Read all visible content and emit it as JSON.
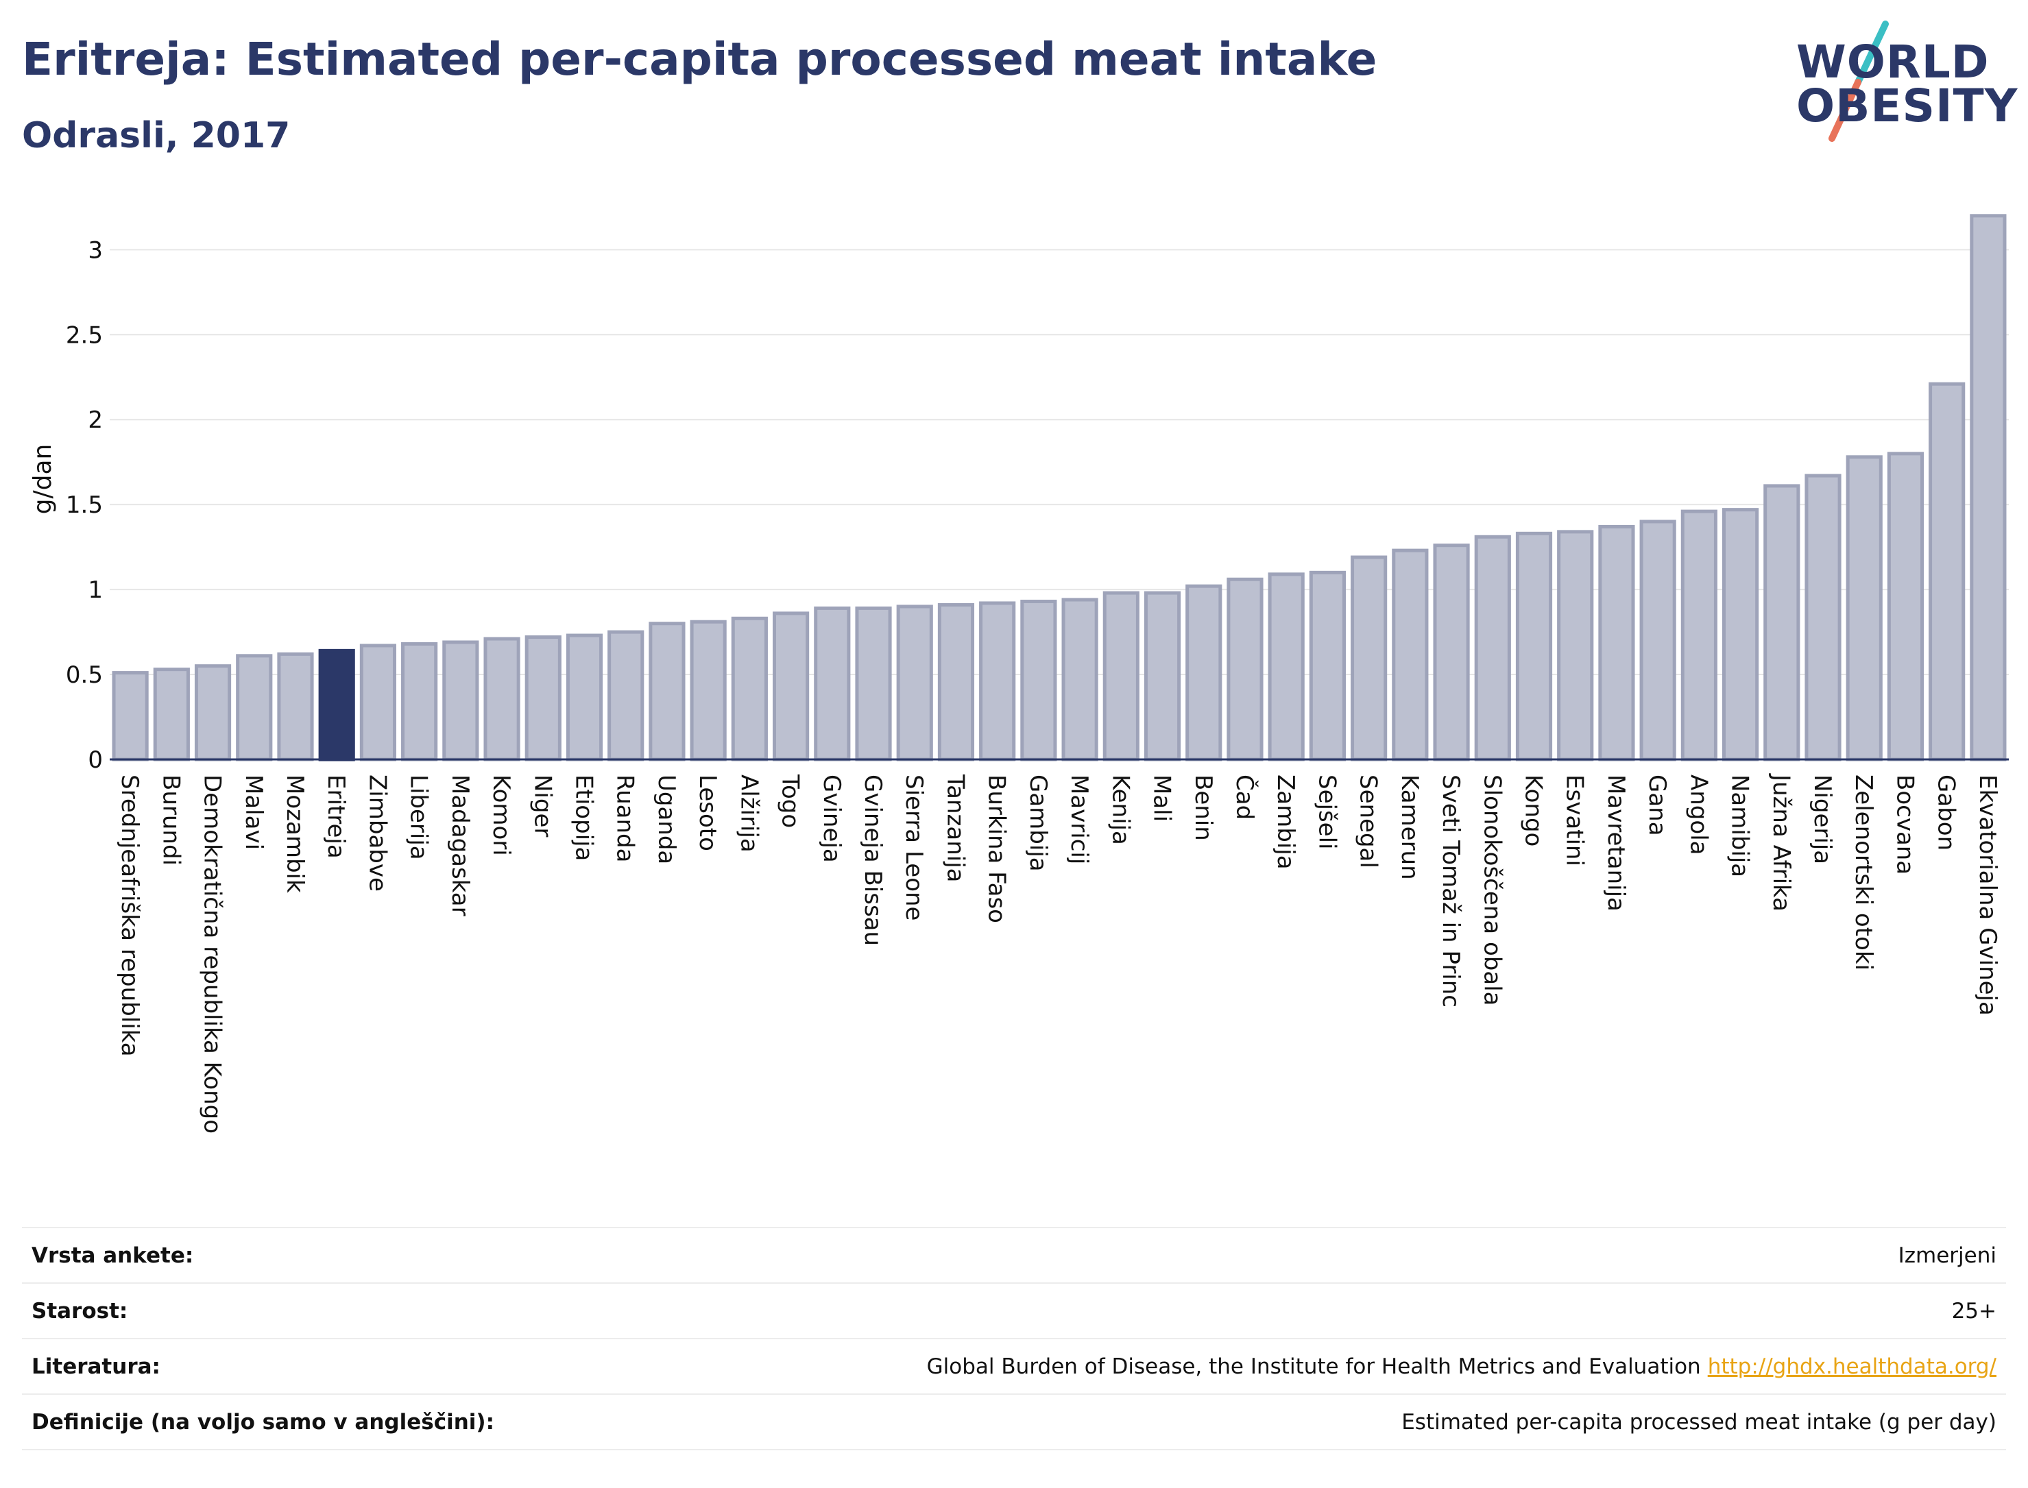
{
  "header": {
    "title": "Eritreja: Estimated per-capita processed meat intake",
    "subtitle": "Odrasli, 2017"
  },
  "logo": {
    "line1": "WORLD",
    "line2": "OBESITY",
    "colors": {
      "slash_top": "#3bbfc4",
      "slash_bottom": "#e8735a"
    }
  },
  "chart_data": {
    "type": "bar",
    "ylabel": "g/dan",
    "ylim": [
      0,
      3.3
    ],
    "yticks": [
      0,
      0.5,
      1,
      1.5,
      2,
      2.5,
      3
    ],
    "ytick_labels": [
      "0",
      "0.5",
      "1",
      "1.5",
      "2",
      "2.5",
      "3"
    ],
    "grid": true,
    "highlight": "Eritreja",
    "colors": {
      "bar": "#bcc0d0",
      "bar_edge": "#9ea3b9",
      "highlight": "#2b3868"
    },
    "categories": [
      "Srednjeafriška republika",
      "Burundi",
      "Demokratična republika Kongo",
      "Malavi",
      "Mozambik",
      "Eritreja",
      "Zimbabve",
      "Liberija",
      "Madagaskar",
      "Komori",
      "Niger",
      "Etiopija",
      "Ruanda",
      "Uganda",
      "Lesoto",
      "Alžirija",
      "Togo",
      "Gvineja",
      "Gvineja Bissau",
      "Sierra Leone",
      "Tanzanija",
      "Burkina Faso",
      "Gambija",
      "Mavricij",
      "Kenija",
      "Mali",
      "Benin",
      "Čad",
      "Zambija",
      "Sejšeli",
      "Senegal",
      "Kamerun",
      "Sveti Tomaž in Princ",
      "Slonokoščena obala",
      "Kongo",
      "Esvatini",
      "Mavretanija",
      "Gana",
      "Angola",
      "Namibija",
      "Južna Afrika",
      "Nigerija",
      "Zelenortski otoki",
      "Bocvana",
      "Gabon",
      "Ekvatorialna Gvineja"
    ],
    "values": [
      0.51,
      0.53,
      0.55,
      0.61,
      0.62,
      0.64,
      0.67,
      0.68,
      0.69,
      0.71,
      0.72,
      0.73,
      0.75,
      0.8,
      0.81,
      0.83,
      0.86,
      0.89,
      0.89,
      0.9,
      0.91,
      0.92,
      0.93,
      0.94,
      0.98,
      0.98,
      1.02,
      1.06,
      1.09,
      1.1,
      1.19,
      1.23,
      1.26,
      1.31,
      1.33,
      1.34,
      1.37,
      1.4,
      1.46,
      1.47,
      1.61,
      1.67,
      1.78,
      1.8,
      2.21,
      3.2
    ]
  },
  "info": {
    "rows": [
      {
        "label": "Vrsta ankete:",
        "value": "Izmerjeni"
      },
      {
        "label": "Starost:",
        "value": "25+"
      },
      {
        "label": "Literatura:",
        "value": "Global Burden of Disease, the Institute for Health Metrics and Evaluation",
        "link": "http://ghdx.healthdata.org/"
      },
      {
        "label": "Definicije (na voljo samo v angleščini):",
        "value": "Estimated per-capita processed meat intake (g per day)"
      }
    ]
  }
}
